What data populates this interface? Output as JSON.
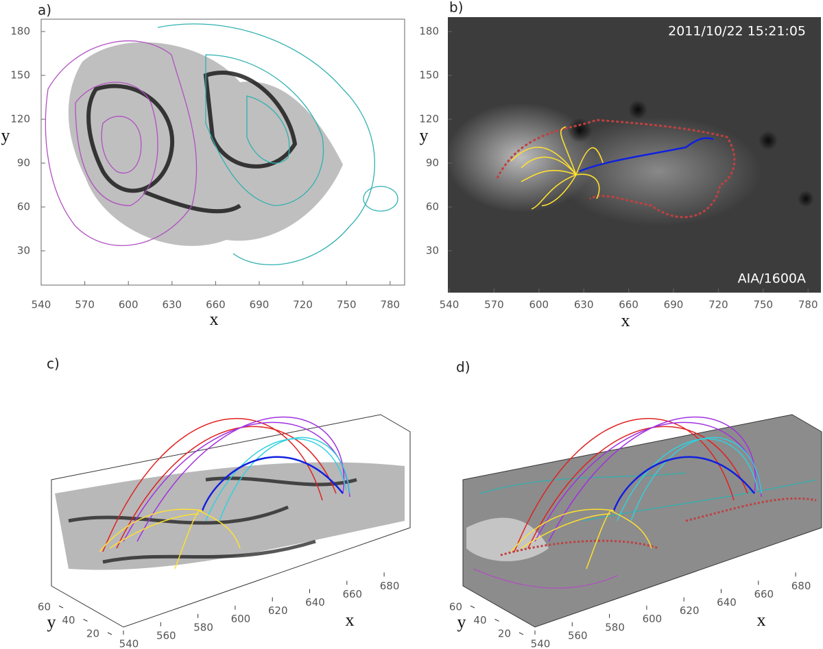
{
  "panels": [
    {
      "label": "a)",
      "xlabel": "x",
      "ylabel": "y",
      "xticks": [
        540,
        570,
        600,
        630,
        660,
        690,
        720,
        750,
        780
      ],
      "yticks": [
        180,
        150,
        120,
        90,
        60,
        30
      ]
    },
    {
      "label": "b)",
      "xlabel": "x",
      "ylabel": "y",
      "xticks": [
        540,
        570,
        600,
        630,
        660,
        690,
        720,
        750,
        780
      ],
      "yticks": [
        180,
        150,
        120,
        90,
        60,
        30
      ],
      "annotations": [
        "2011/10/22  15:21:05",
        "AIA/1600A"
      ]
    },
    {
      "label": "c)",
      "xlabel": "x",
      "ylabel": "y",
      "xticks": [
        540,
        560,
        580,
        600,
        620,
        640,
        660,
        680
      ],
      "yticks": [
        60,
        40,
        20
      ]
    },
    {
      "label": "d)",
      "xlabel": "x",
      "ylabel": "y",
      "xticks": [
        540,
        560,
        580,
        600,
        620,
        640,
        660,
        680
      ],
      "yticks": [
        60,
        40,
        20
      ]
    }
  ]
}
